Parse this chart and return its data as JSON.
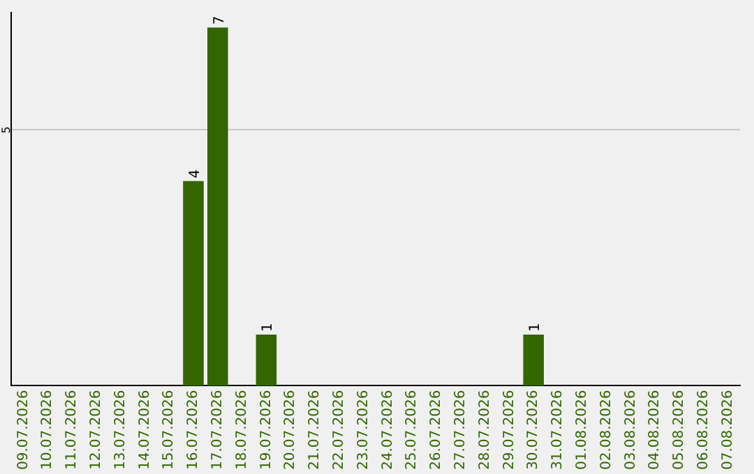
{
  "chart_data": {
    "type": "bar",
    "categories": [
      "09.07.2026",
      "10.07.2026",
      "11.07.2026",
      "12.07.2026",
      "13.07.2026",
      "14.07.2026",
      "15.07.2026",
      "16.07.2026",
      "17.07.2026",
      "18.07.2026",
      "19.07.2026",
      "20.07.2026",
      "21.07.2026",
      "22.07.2026",
      "23.07.2026",
      "24.07.2026",
      "25.07.2026",
      "26.07.2026",
      "27.07.2026",
      "28.07.2026",
      "29.07.2026",
      "30.07.2026",
      "31.07.2026",
      "01.08.2026",
      "02.08.2026",
      "03.08.2026",
      "04.08.2026",
      "05.08.2026",
      "06.08.2026",
      "07.08.2026"
    ],
    "values": [
      0,
      0,
      0,
      0,
      0,
      0,
      0,
      4,
      7,
      0,
      1,
      0,
      0,
      0,
      0,
      0,
      0,
      0,
      0,
      0,
      0,
      1,
      0,
      0,
      0,
      0,
      0,
      0,
      0,
      0
    ],
    "value_labels": [
      null,
      null,
      null,
      null,
      null,
      null,
      null,
      "4",
      "7",
      null,
      "1",
      null,
      null,
      null,
      null,
      null,
      null,
      null,
      null,
      null,
      null,
      "1",
      null,
      null,
      null,
      null,
      null,
      null,
      null,
      null
    ],
    "color": "#336600",
    "ylim": [
      0,
      7.3
    ],
    "yticks": [
      5
    ],
    "grid": "y",
    "legend": false
  }
}
